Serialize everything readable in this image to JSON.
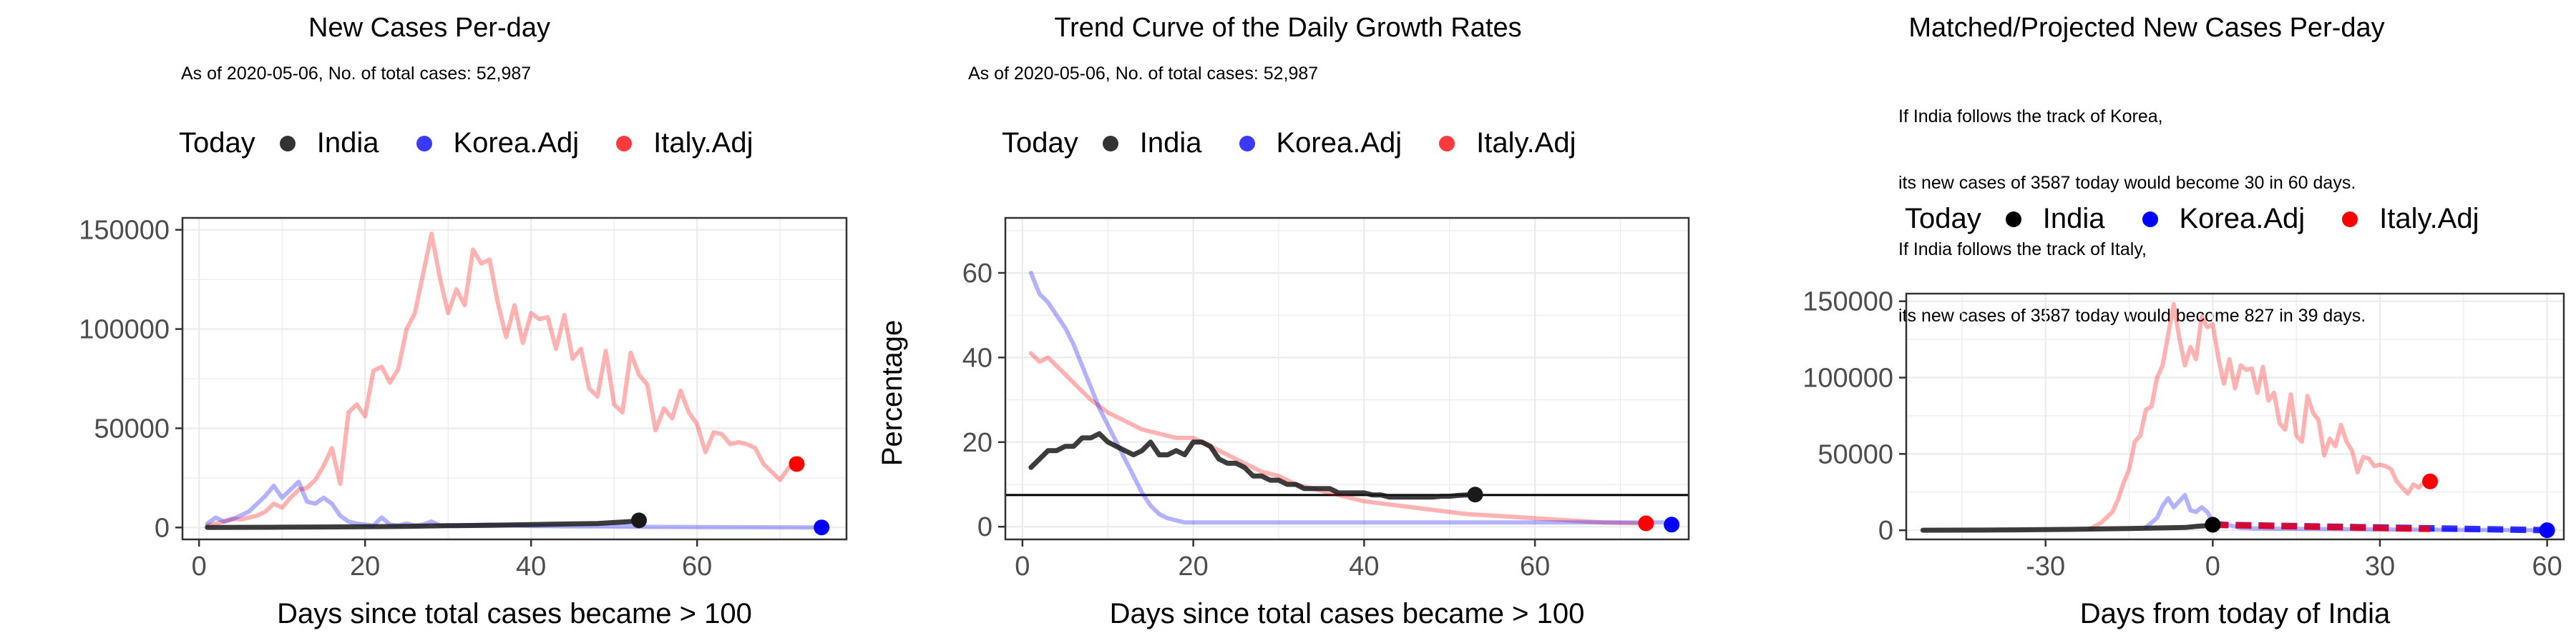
{
  "colors": {
    "today": "#000000",
    "india": "#1a1a1a",
    "korea": "#0000ff",
    "italy": "#ff0000"
  },
  "panels": [
    {
      "title": "New Cases Per-day",
      "subtitle": [
        "As of 2020-05-06, No. of total cases: 52,987"
      ],
      "legend": {
        "title": "Today",
        "entries": [
          "India",
          "Korea.Adj",
          "Italy.Adj"
        ]
      },
      "xlabel": "Days since total cases became > 100",
      "ylabel": ""
    },
    {
      "title": "Trend Curve of the Daily Growth Rates",
      "subtitle": [
        "As of 2020-05-06, No. of total cases: 52,987"
      ],
      "legend": {
        "title": "Today",
        "entries": [
          "India",
          "Korea.Adj",
          "Italy.Adj"
        ]
      },
      "xlabel": "Days since total cases became > 100",
      "ylabel": "Percentage"
    },
    {
      "title": "Matched/Projected New Cases Per-day",
      "subtitle": [
        "If India follows the track of Korea,",
        "its new cases of 3587 today would become 30 in 60 days.",
        "If India follows the track of Italy,",
        "its new cases of 3587 today would become 827 in 39 days."
      ],
      "legend": {
        "title": "Today",
        "entries": [
          "India",
          "Korea.Adj",
          "Italy.Adj"
        ]
      },
      "xlabel": "Days from today of India",
      "ylabel": ""
    }
  ],
  "chart_data": [
    {
      "type": "line",
      "title": "New Cases Per-day",
      "xlabel": "Days since total cases became > 100",
      "ylabel": "",
      "xlim": [
        -2,
        78
      ],
      "ylim": [
        -6000,
        156000
      ],
      "xticks": [
        0,
        20,
        40,
        60
      ],
      "yticks": [
        0,
        50000,
        100000,
        150000
      ],
      "grid": true,
      "legend_position": "top",
      "series": [
        {
          "name": "Italy.Adj",
          "color": "#ff0000",
          "x": [
            1,
            2,
            3,
            4,
            5,
            6,
            7,
            8,
            9,
            10,
            11,
            12,
            13,
            14,
            15,
            16,
            17,
            18,
            19,
            20,
            21,
            22,
            23,
            24,
            25,
            26,
            27,
            28,
            29,
            30,
            31,
            32,
            33,
            34,
            35,
            36,
            37,
            38,
            39,
            40,
            41,
            42,
            43,
            44,
            45,
            46,
            47,
            48,
            49,
            50,
            51,
            52,
            53,
            54,
            55,
            56,
            57,
            58,
            59,
            60,
            61,
            62,
            63,
            64,
            65,
            66,
            67,
            68,
            69,
            70,
            71,
            72
          ],
          "y": [
            1000,
            2000,
            3000,
            4500,
            4000,
            5000,
            6000,
            8000,
            12000,
            10000,
            15000,
            19000,
            20000,
            24000,
            31000,
            40000,
            22000,
            58000,
            62000,
            56000,
            79000,
            81000,
            73000,
            80000,
            100000,
            108000,
            128000,
            148000,
            126000,
            108000,
            120000,
            112000,
            140000,
            133000,
            135000,
            113000,
            96000,
            112000,
            93000,
            108000,
            105000,
            106000,
            90000,
            107000,
            85000,
            90000,
            70000,
            66000,
            89000,
            62000,
            58000,
            88000,
            77000,
            72000,
            49000,
            60000,
            55000,
            69000,
            58000,
            52000,
            38000,
            48000,
            47000,
            42000,
            43000,
            42000,
            40000,
            32000,
            28000,
            24000,
            30000,
            32000
          ]
        },
        {
          "name": "Korea.Adj",
          "color": "#0000ff",
          "x": [
            1,
            2,
            3,
            4,
            5,
            6,
            7,
            8,
            9,
            10,
            11,
            12,
            13,
            14,
            15,
            16,
            17,
            18,
            19,
            20,
            21,
            22,
            23,
            24,
            25,
            26,
            27,
            28,
            29,
            30,
            35,
            40,
            45,
            50,
            55,
            60,
            65,
            70,
            75
          ],
          "y": [
            2000,
            5000,
            3000,
            4000,
            6000,
            8000,
            12000,
            16000,
            21000,
            15000,
            19000,
            23000,
            13000,
            12000,
            15000,
            12000,
            6000,
            3000,
            2000,
            1500,
            1000,
            5000,
            1500,
            1000,
            2000,
            1000,
            1500,
            3000,
            1000,
            800,
            1500,
            800,
            600,
            500,
            300,
            200,
            150,
            100,
            50
          ]
        },
        {
          "name": "India",
          "color": "#1a1a1a",
          "x": [
            1,
            5,
            10,
            15,
            20,
            25,
            30,
            35,
            40,
            45,
            48,
            50,
            52,
            53
          ],
          "y": [
            50,
            100,
            150,
            250,
            400,
            600,
            900,
            1100,
            1500,
            1800,
            2000,
            2500,
            3000,
            3587
          ]
        }
      ],
      "today_points": [
        {
          "name": "India",
          "x": 53,
          "y": 3587,
          "color": "#1a1a1a"
        },
        {
          "name": "Korea.Adj",
          "x": 75,
          "y": 50,
          "color": "#0000ff"
        },
        {
          "name": "Italy.Adj",
          "x": 72,
          "y": 32000,
          "color": "#ff0000"
        }
      ]
    },
    {
      "type": "line",
      "title": "Trend Curve of the Daily Growth Rates",
      "xlabel": "Days since total cases became > 100",
      "ylabel": "Percentage",
      "xlim": [
        -2,
        78
      ],
      "ylim": [
        -3,
        73
      ],
      "xticks": [
        0,
        20,
        40,
        60
      ],
      "yticks": [
        0,
        20,
        40,
        60
      ],
      "grid": true,
      "legend_position": "top",
      "hline": 7.5,
      "series": [
        {
          "name": "Italy.Adj",
          "color": "#ff0000",
          "x": [
            1,
            2,
            3,
            4,
            5,
            6,
            7,
            8,
            10,
            12,
            14,
            16,
            18,
            20,
            22,
            24,
            26,
            28,
            30,
            32,
            34,
            36,
            38,
            40,
            44,
            48,
            52,
            56,
            60,
            64,
            68,
            72
          ],
          "y": [
            41,
            39,
            40,
            38,
            36,
            34,
            32,
            30,
            27,
            25,
            23,
            22,
            21,
            21,
            19,
            17,
            15,
            13,
            12,
            10,
            9,
            8,
            7,
            6,
            5,
            4,
            3,
            2.5,
            2,
            1.5,
            1,
            0.8
          ]
        },
        {
          "name": "Korea.Adj",
          "color": "#0000ff",
          "x": [
            1,
            2,
            3,
            4,
            5,
            6,
            7,
            8,
            9,
            10,
            11,
            12,
            13,
            14,
            15,
            16,
            17,
            18,
            19,
            20,
            22,
            24,
            26,
            28,
            30,
            40,
            50,
            60,
            70,
            75
          ],
          "y": [
            60,
            55,
            53,
            50,
            47,
            43,
            38,
            33,
            28,
            24,
            20,
            16,
            12,
            8,
            5,
            3,
            2,
            1.5,
            1,
            1,
            1,
            1,
            1,
            1,
            1,
            1,
            1,
            1,
            1,
            1
          ]
        },
        {
          "name": "India",
          "color": "#1a1a1a",
          "x": [
            1,
            2,
            3,
            4,
            5,
            6,
            7,
            8,
            9,
            10,
            11,
            12,
            13,
            14,
            15,
            16,
            17,
            18,
            19,
            20,
            21,
            22,
            23,
            24,
            25,
            26,
            27,
            28,
            29,
            30,
            31,
            32,
            33,
            34,
            35,
            36,
            37,
            38,
            39,
            40,
            41,
            42,
            43,
            44,
            45,
            46,
            47,
            48,
            49,
            50,
            51,
            52,
            53
          ],
          "y": [
            14,
            16,
            18,
            18,
            19,
            19,
            21,
            21,
            22,
            20,
            19,
            18,
            17,
            18,
            20,
            17,
            17,
            18,
            17,
            20,
            20,
            19,
            16,
            15,
            15,
            14,
            12,
            12,
            11,
            11,
            10,
            10,
            9,
            9,
            9,
            9,
            8,
            8,
            8,
            8,
            7.5,
            7.5,
            7,
            7,
            7,
            7,
            7,
            7,
            7.2,
            7.2,
            7.4,
            7.5,
            7.6
          ]
        }
      ],
      "today_points": [
        {
          "name": "India",
          "x": 53,
          "y": 7.6,
          "color": "#1a1a1a"
        },
        {
          "name": "Korea.Adj",
          "x": 76,
          "y": 0.5,
          "color": "#0000ff"
        },
        {
          "name": "Italy.Adj",
          "x": 73,
          "y": 0.8,
          "color": "#ff0000"
        }
      ]
    },
    {
      "type": "line",
      "title": "Matched/Projected New Cases Per-day",
      "xlabel": "Days from today of India",
      "ylabel": "",
      "xlim": [
        -55,
        63
      ],
      "ylim": [
        -6000,
        155000
      ],
      "xticks": [
        -30,
        0,
        30,
        60
      ],
      "yticks": [
        0,
        50000,
        100000,
        150000
      ],
      "grid": true,
      "legend_position": "top",
      "series": [
        {
          "name": "Italy.Adj",
          "color": "#ff0000",
          "x": [
            -22,
            -20,
            -18,
            -17,
            -16,
            -15,
            -14,
            -13,
            -12,
            -11,
            -10,
            -9,
            -8,
            -7,
            -6,
            -5,
            -4,
            -3,
            -2,
            -1,
            0,
            1,
            2,
            3,
            4,
            5,
            6,
            7,
            8,
            9,
            10,
            11,
            12,
            13,
            14,
            15,
            16,
            17,
            18,
            19,
            20,
            21,
            22,
            23,
            24,
            25,
            26,
            27,
            28,
            29,
            30,
            31,
            32,
            33,
            34,
            35,
            36,
            37,
            38
          ],
          "y": [
            1000,
            5000,
            12000,
            20000,
            31000,
            40000,
            58000,
            62000,
            79000,
            81000,
            100000,
            108000,
            128000,
            148000,
            126000,
            108000,
            120000,
            112000,
            140000,
            133000,
            135000,
            113000,
            96000,
            112000,
            93000,
            108000,
            105000,
            106000,
            90000,
            107000,
            85000,
            90000,
            70000,
            66000,
            89000,
            62000,
            58000,
            88000,
            77000,
            72000,
            49000,
            60000,
            55000,
            69000,
            58000,
            52000,
            38000,
            48000,
            47000,
            42000,
            43000,
            42000,
            40000,
            32000,
            28000,
            24000,
            30000,
            28000,
            32000
          ]
        },
        {
          "name": "Korea.Adj",
          "color": "#0000ff",
          "x": [
            -12,
            -11,
            -10,
            -9,
            -8,
            -7,
            -6,
            -5,
            -4,
            -3,
            -2,
            -1,
            0,
            5,
            10,
            20,
            30,
            40,
            50,
            60
          ],
          "y": [
            2000,
            5000,
            8000,
            16000,
            21000,
            15000,
            19000,
            23000,
            13000,
            12000,
            15000,
            12000,
            6000,
            1500,
            1000,
            800,
            500,
            300,
            150,
            30
          ]
        },
        {
          "name": "India",
          "color": "#1a1a1a",
          "x": [
            -52,
            -45,
            -40,
            -35,
            -30,
            -25,
            -20,
            -15,
            -10,
            -5,
            -3,
            -1,
            0
          ],
          "y": [
            50,
            100,
            150,
            250,
            400,
            600,
            900,
            1100,
            1500,
            1800,
            2500,
            3000,
            3587
          ]
        }
      ],
      "projections": [
        {
          "name": "Korea.Adj",
          "color": "#0000ff",
          "x": [
            0,
            60
          ],
          "y": [
            3587,
            30
          ]
        },
        {
          "name": "Italy.Adj",
          "color": "#ff0000",
          "x": [
            0,
            39
          ],
          "y": [
            3587,
            827
          ]
        }
      ],
      "today_points": [
        {
          "name": "India",
          "x": 0,
          "y": 3587,
          "color": "#000000"
        },
        {
          "name": "Korea.Adj",
          "x": 60,
          "y": 30,
          "color": "#0000ff"
        },
        {
          "name": "Italy.Adj",
          "x": 39,
          "y": 32000,
          "color": "#ff0000"
        }
      ]
    }
  ]
}
